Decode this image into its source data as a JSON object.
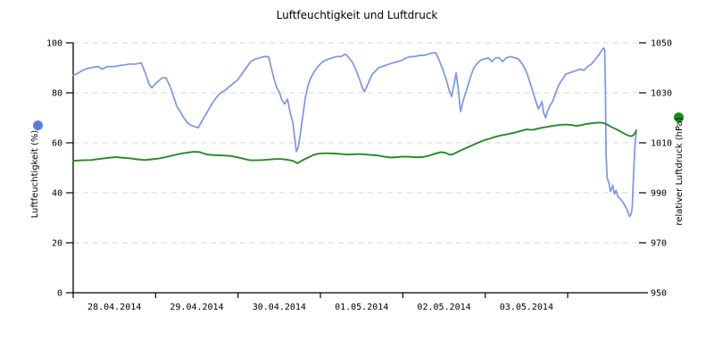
{
  "chart_data": {
    "type": "line",
    "title": "Luftfeuchtigkeit und Luftdruck",
    "grid": true,
    "legend_position": "axis-labels",
    "y_left": {
      "label": "Luftfeuchtigkeit (%)",
      "range": [
        0,
        100
      ],
      "ticks": [
        0,
        20,
        40,
        60,
        80,
        100
      ]
    },
    "y_right": {
      "label": "relativer Luftdruck (hPa)",
      "range": [
        950,
        1050
      ],
      "ticks": [
        950,
        970,
        990,
        1010,
        1030,
        1050
      ]
    },
    "x_axis": {
      "unit": "hours since 28.04.2014 00:00",
      "range": [
        0,
        164
      ],
      "tick_hours": [
        0,
        24,
        48,
        72,
        96,
        120,
        144
      ],
      "label_hours": [
        12,
        36,
        60,
        84,
        108,
        132
      ],
      "labels": [
        "28.04.2014",
        "29.04.2014",
        "30.04.2014",
        "01.05.2014",
        "02.05.2014",
        "03.05.2014"
      ]
    },
    "colors": {
      "humidity_line": "#7b95e8",
      "humidity_dot": "#587ee2",
      "pressure_line": "#268a26",
      "pressure_dot": "#119111",
      "grid": "#d6d6d6",
      "axis": "#000000"
    },
    "series": [
      {
        "name": "Luftfeuchtigkeit (%)",
        "axis": "left",
        "points": [
          [
            0,
            87
          ],
          [
            1,
            87.5
          ],
          [
            2.1,
            88.5
          ],
          [
            3.5,
            89.5
          ],
          [
            4.9,
            90
          ],
          [
            7.3,
            90.5
          ],
          [
            8.5,
            89.5
          ],
          [
            9.9,
            90.5
          ],
          [
            12,
            90.5
          ],
          [
            14,
            91
          ],
          [
            16.4,
            91.5
          ],
          [
            18.2,
            91.5
          ],
          [
            19.8,
            92
          ],
          [
            21,
            88
          ],
          [
            22.1,
            83.5
          ],
          [
            22.9,
            82
          ],
          [
            23.9,
            83.5
          ],
          [
            25,
            85
          ],
          [
            26,
            86
          ],
          [
            27,
            86
          ],
          [
            28.1,
            83
          ],
          [
            29.1,
            79
          ],
          [
            30.2,
            74.5
          ],
          [
            31.2,
            72.5
          ],
          [
            32.2,
            70
          ],
          [
            33.3,
            68
          ],
          [
            34.3,
            67
          ],
          [
            35.4,
            66.5
          ],
          [
            36.4,
            66
          ],
          [
            37.4,
            68.5
          ],
          [
            38.5,
            71
          ],
          [
            39.5,
            73.5
          ],
          [
            40.6,
            76
          ],
          [
            41.6,
            78
          ],
          [
            42.9,
            80
          ],
          [
            44.2,
            81
          ],
          [
            45.5,
            82.5
          ],
          [
            46.8,
            84
          ],
          [
            47.8,
            85
          ],
          [
            49.1,
            87.5
          ],
          [
            50.4,
            90
          ],
          [
            51.7,
            92.5
          ],
          [
            53,
            93.5
          ],
          [
            54.3,
            94
          ],
          [
            55.6,
            94.5
          ],
          [
            56.9,
            94.5
          ],
          [
            57.7,
            90
          ],
          [
            58.5,
            85.5
          ],
          [
            59.3,
            82
          ],
          [
            60.1,
            80
          ],
          [
            60.8,
            77
          ],
          [
            61.6,
            75.5
          ],
          [
            62.4,
            77.5
          ],
          [
            63.2,
            72
          ],
          [
            64,
            68
          ],
          [
            64.5,
            62
          ],
          [
            65,
            56.5
          ],
          [
            65.5,
            58
          ],
          [
            66,
            62
          ],
          [
            66.8,
            70
          ],
          [
            67.6,
            78
          ],
          [
            68.4,
            83
          ],
          [
            69.2,
            86
          ],
          [
            70.2,
            88.5
          ],
          [
            71.3,
            90.5
          ],
          [
            72.3,
            92
          ],
          [
            73.3,
            93
          ],
          [
            74.4,
            93.5
          ],
          [
            75.4,
            94
          ],
          [
            76.7,
            94.5
          ],
          [
            78,
            94.5
          ],
          [
            79.3,
            95.5
          ],
          [
            80.3,
            94
          ],
          [
            81.4,
            92
          ],
          [
            82.4,
            89
          ],
          [
            83.5,
            85
          ],
          [
            84.2,
            82
          ],
          [
            84.8,
            80.5
          ],
          [
            85.5,
            82.5
          ],
          [
            86.3,
            85
          ],
          [
            87.1,
            87.5
          ],
          [
            87.9,
            88.5
          ],
          [
            88.9,
            90
          ],
          [
            90,
            90.5
          ],
          [
            91,
            91
          ],
          [
            92,
            91.5
          ],
          [
            93.1,
            92
          ],
          [
            94.4,
            92.5
          ],
          [
            95.7,
            93
          ],
          [
            97,
            94
          ],
          [
            98.3,
            94.5
          ],
          [
            99.6,
            94.5
          ],
          [
            100.9,
            95
          ],
          [
            102.2,
            95
          ],
          [
            103.5,
            95.5
          ],
          [
            104.8,
            96
          ],
          [
            105.6,
            96
          ],
          [
            106.6,
            93
          ],
          [
            107.6,
            89.5
          ],
          [
            108.7,
            85
          ],
          [
            109.5,
            81
          ],
          [
            110.2,
            78.5
          ],
          [
            111,
            84
          ],
          [
            111.5,
            88
          ],
          [
            112.1,
            82
          ],
          [
            112.8,
            72.5
          ],
          [
            113.6,
            77
          ],
          [
            114.4,
            80.5
          ],
          [
            115.2,
            84
          ],
          [
            116,
            87.5
          ],
          [
            116.7,
            90
          ],
          [
            117.5,
            91.5
          ],
          [
            118.6,
            93
          ],
          [
            119.6,
            93.5
          ],
          [
            120.9,
            94
          ],
          [
            121.9,
            92.5
          ],
          [
            123,
            94
          ],
          [
            124,
            94
          ],
          [
            125.1,
            92.5
          ],
          [
            126.1,
            94
          ],
          [
            127.4,
            94.5
          ],
          [
            128.7,
            94
          ],
          [
            129.7,
            93.5
          ],
          [
            130.8,
            91.5
          ],
          [
            131.8,
            89
          ],
          [
            132.6,
            86
          ],
          [
            133.4,
            82.5
          ],
          [
            134.2,
            79
          ],
          [
            135,
            75.5
          ],
          [
            135.5,
            73.5
          ],
          [
            136,
            75
          ],
          [
            136.5,
            76.5
          ],
          [
            137,
            72
          ],
          [
            137.6,
            70
          ],
          [
            138.1,
            72.5
          ],
          [
            138.9,
            75
          ],
          [
            139.6,
            76.5
          ],
          [
            140.4,
            79.5
          ],
          [
            141.2,
            82.5
          ],
          [
            142,
            84.5
          ],
          [
            142.8,
            86
          ],
          [
            143.5,
            87.5
          ],
          [
            144.6,
            88
          ],
          [
            145.6,
            88.5
          ],
          [
            146.7,
            89
          ],
          [
            147.7,
            89.5
          ],
          [
            148.8,
            89
          ],
          [
            149.8,
            90.5
          ],
          [
            150.9,
            91.5
          ],
          [
            151.9,
            93
          ],
          [
            153,
            95
          ],
          [
            153.7,
            96.5
          ],
          [
            154.5,
            98
          ],
          [
            154.8,
            97
          ],
          [
            155,
            80
          ],
          [
            155.2,
            55
          ],
          [
            155.5,
            46
          ],
          [
            156,
            44
          ],
          [
            156.5,
            40.5
          ],
          [
            157.1,
            43
          ],
          [
            157.6,
            39.5
          ],
          [
            158.1,
            41
          ],
          [
            158.6,
            38.5
          ],
          [
            159.4,
            37.5
          ],
          [
            160.2,
            36
          ],
          [
            161,
            34
          ],
          [
            161.5,
            32.5
          ],
          [
            162,
            30.5
          ],
          [
            162.5,
            31.5
          ],
          [
            162.8,
            34
          ],
          [
            163,
            42
          ],
          [
            163.3,
            50
          ],
          [
            163.5,
            57
          ],
          [
            163.8,
            62
          ],
          [
            164,
            64
          ]
        ]
      },
      {
        "name": "relativer Luftdruck (hPa)",
        "axis": "right",
        "points": [
          [
            0,
            1002.8
          ],
          [
            2.6,
            1003
          ],
          [
            5.2,
            1003.1
          ],
          [
            7.8,
            1003.6
          ],
          [
            10.4,
            1004
          ],
          [
            12.5,
            1004.3
          ],
          [
            14.6,
            1004
          ],
          [
            16.6,
            1003.8
          ],
          [
            18.7,
            1003.4
          ],
          [
            20.8,
            1003.1
          ],
          [
            22.9,
            1003.4
          ],
          [
            25,
            1003.7
          ],
          [
            27,
            1004.3
          ],
          [
            29.1,
            1005
          ],
          [
            31.2,
            1005.6
          ],
          [
            33.3,
            1006.1
          ],
          [
            35.1,
            1006.4
          ],
          [
            36.9,
            1006.3
          ],
          [
            38.7,
            1005.4
          ],
          [
            40.6,
            1005.1
          ],
          [
            42.4,
            1005
          ],
          [
            44.2,
            1004.9
          ],
          [
            46,
            1004.7
          ],
          [
            47.8,
            1004.2
          ],
          [
            49.7,
            1003.6
          ],
          [
            51.5,
            1003
          ],
          [
            53.3,
            1003
          ],
          [
            55.1,
            1003.1
          ],
          [
            56.9,
            1003.3
          ],
          [
            58.8,
            1003.5
          ],
          [
            60.6,
            1003.5
          ],
          [
            62.4,
            1003.2
          ],
          [
            64.2,
            1002.7
          ],
          [
            65.3,
            1001.8
          ],
          [
            66.3,
            1002.6
          ],
          [
            67.3,
            1003.4
          ],
          [
            68.6,
            1004.2
          ],
          [
            69.9,
            1005.1
          ],
          [
            71.3,
            1005.6
          ],
          [
            72.5,
            1005.8
          ],
          [
            74.4,
            1005.8
          ],
          [
            76.2,
            1005.7
          ],
          [
            78,
            1005.5
          ],
          [
            79.8,
            1005.3
          ],
          [
            81.6,
            1005.4
          ],
          [
            83.5,
            1005.5
          ],
          [
            85.3,
            1005.3
          ],
          [
            87.1,
            1005.1
          ],
          [
            88.9,
            1004.9
          ],
          [
            90.8,
            1004.4
          ],
          [
            92.6,
            1004.1
          ],
          [
            94.4,
            1004.3
          ],
          [
            96.2,
            1004.5
          ],
          [
            98,
            1004.4
          ],
          [
            99.9,
            1004.2
          ],
          [
            101.7,
            1004.3
          ],
          [
            103.5,
            1004.8
          ],
          [
            105.3,
            1005.6
          ],
          [
            107.1,
            1006.3
          ],
          [
            108.4,
            1006
          ],
          [
            109.7,
            1005.2
          ],
          [
            110.8,
            1005.5
          ],
          [
            111.8,
            1006.3
          ],
          [
            113.1,
            1007.1
          ],
          [
            114.4,
            1007.9
          ],
          [
            115.7,
            1008.7
          ],
          [
            117,
            1009.5
          ],
          [
            118.3,
            1010.3
          ],
          [
            119.6,
            1011
          ],
          [
            121.2,
            1011.6
          ],
          [
            122.7,
            1012.3
          ],
          [
            124.3,
            1012.9
          ],
          [
            125.9,
            1013.3
          ],
          [
            127.4,
            1013.7
          ],
          [
            129,
            1014.2
          ],
          [
            130.5,
            1014.8
          ],
          [
            132.1,
            1015.4
          ],
          [
            133.1,
            1015.2
          ],
          [
            134.2,
            1015.3
          ],
          [
            135.7,
            1015.8
          ],
          [
            137.3,
            1016.2
          ],
          [
            138.9,
            1016.6
          ],
          [
            140.4,
            1016.9
          ],
          [
            142,
            1017.2
          ],
          [
            143.5,
            1017.3
          ],
          [
            145.1,
            1017.1
          ],
          [
            146.4,
            1016.8
          ],
          [
            147.7,
            1017
          ],
          [
            149.3,
            1017.5
          ],
          [
            150.9,
            1017.8
          ],
          [
            152.4,
            1018
          ],
          [
            153.5,
            1018.1
          ],
          [
            154.5,
            1017.9
          ],
          [
            155.5,
            1017.3
          ],
          [
            156.5,
            1016.5
          ],
          [
            157.6,
            1015.8
          ],
          [
            158.6,
            1015.1
          ],
          [
            159.7,
            1014.3
          ],
          [
            160.7,
            1013.5
          ],
          [
            161.7,
            1012.9
          ],
          [
            162.5,
            1012.6
          ],
          [
            163.3,
            1013.2
          ],
          [
            163.8,
            1014.3
          ],
          [
            164,
            1015
          ]
        ]
      }
    ]
  }
}
